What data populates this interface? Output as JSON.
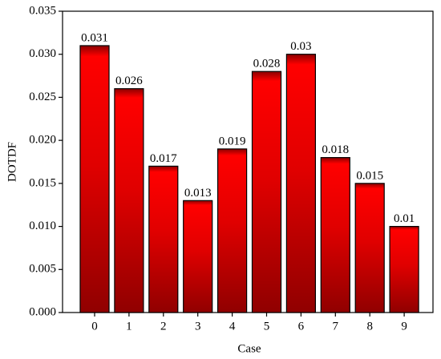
{
  "chart_data": {
    "type": "bar",
    "x_label": "Case",
    "y_label": "DOTDF",
    "categories": [
      "0",
      "1",
      "2",
      "3",
      "4",
      "5",
      "6",
      "7",
      "8",
      "9"
    ],
    "values": [
      0.031,
      0.026,
      0.017,
      0.013,
      0.019,
      0.028,
      0.03,
      0.018,
      0.015,
      0.01
    ],
    "color": "#ff0000",
    "ylim": [
      0,
      0.035
    ],
    "yticks": [
      {
        "value": 0,
        "label": "0.000"
      },
      {
        "value": 0.005,
        "label": "0.005"
      },
      {
        "value": 0.01,
        "label": "0.010"
      },
      {
        "value": 0.015,
        "label": "0.015"
      },
      {
        "value": 0.02,
        "label": "0.020"
      },
      {
        "value": 0.025,
        "label": "0.025"
      },
      {
        "value": 0.03,
        "label": "0.030"
      },
      {
        "value": 0.035,
        "label": "0.035"
      }
    ]
  }
}
